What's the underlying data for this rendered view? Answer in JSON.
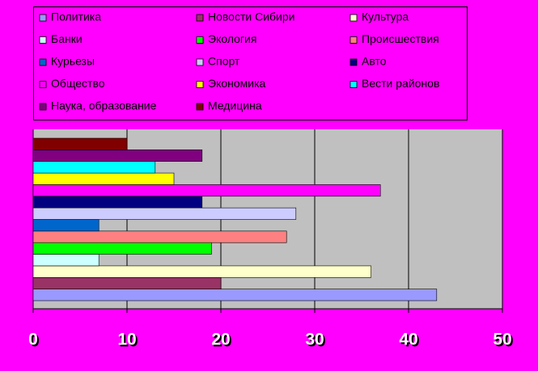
{
  "chart_data": {
    "type": "bar",
    "orientation": "horizontal",
    "categories": [
      null
    ],
    "series": [
      {
        "name": "Политика",
        "color": "#9999ff",
        "values": [
          43
        ]
      },
      {
        "name": "Новости Сибири",
        "color": "#993366",
        "values": [
          20
        ]
      },
      {
        "name": "Культура",
        "color": "#ffffcc",
        "values": [
          36
        ]
      },
      {
        "name": "Банки",
        "color": "#ccffff",
        "values": [
          7
        ]
      },
      {
        "name": "Экология",
        "color": "#00ff00",
        "values": [
          19
        ]
      },
      {
        "name": "Происшествия",
        "color": "#ff8080",
        "values": [
          27
        ]
      },
      {
        "name": "Курьезы",
        "color": "#0066cc",
        "values": [
          7
        ]
      },
      {
        "name": "Спорт",
        "color": "#ccccff",
        "values": [
          28
        ]
      },
      {
        "name": "Авто",
        "color": "#000080",
        "values": [
          18
        ]
      },
      {
        "name": "Общество",
        "color": "#ff00ff",
        "values": [
          37
        ]
      },
      {
        "name": "Экономика",
        "color": "#ffff00",
        "values": [
          15
        ]
      },
      {
        "name": "Вести районов",
        "color": "#00ffff",
        "values": [
          13
        ]
      },
      {
        "name": "Наука, образование",
        "color": "#800080",
        "values": [
          18
        ]
      },
      {
        "name": "Медицина",
        "color": "#800000",
        "values": [
          10
        ]
      }
    ],
    "xlim": [
      0,
      50
    ],
    "xticks": [
      0,
      10,
      20,
      30,
      40,
      50
    ],
    "grid": true,
    "legend": "top"
  }
}
